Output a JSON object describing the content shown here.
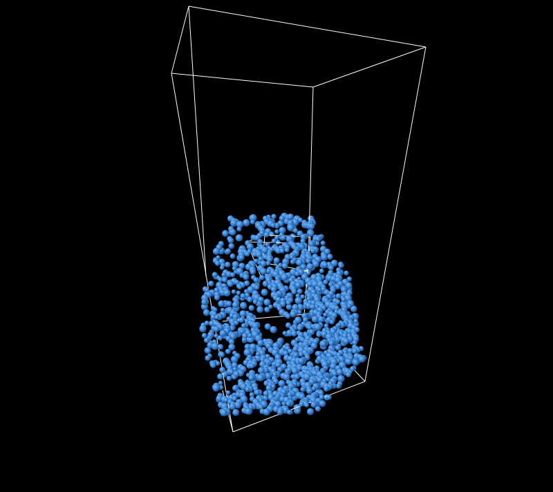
{
  "scene": {
    "background_color": "#000000",
    "wireframe_color": "#ffffff",
    "particle_color": "#3a86d8",
    "particle_highlight_color": "#7fb6f0",
    "particle_shadow_color": "#1d4f8c",
    "particle_count_visual_estimate": 1400,
    "objects": [
      "container-box-wireframe",
      "inner-box-wireframe",
      "particle-cloud"
    ]
  }
}
